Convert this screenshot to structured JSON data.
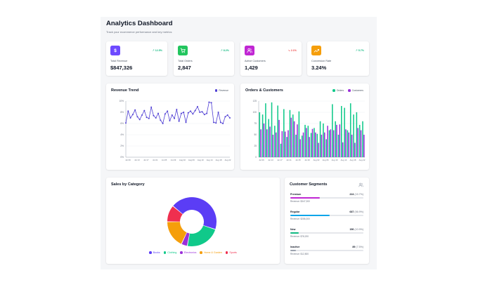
{
  "header": {
    "title": "Analytics Dashboard",
    "subtitle": "Track your ecommerce performance and key metrics"
  },
  "kpis": [
    {
      "label": "Total Revenue",
      "value": "$847,326",
      "change": "12.5%",
      "direction": "up",
      "icon": "dollar-icon",
      "color": "#6d4aff",
      "change_color": "#10b981"
    },
    {
      "label": "Total Orders",
      "value": "2,847",
      "change": "8.2%",
      "direction": "up",
      "icon": "cart-icon",
      "color": "#22c55e",
      "change_color": "#10b981"
    },
    {
      "label": "Active Customers",
      "value": "1,429",
      "change": "2.1%",
      "direction": "down",
      "icon": "users-icon",
      "color": "#c026d3",
      "change_color": "#ef4444"
    },
    {
      "label": "Conversion Rate",
      "value": "3.24%",
      "change": "5.7%",
      "direction": "up",
      "icon": "chart-icon",
      "color": "#f59e0b",
      "change_color": "#10b981"
    }
  ],
  "revenue_trend": {
    "title": "Revenue Trend",
    "legend": "Revenue",
    "color": "#4f3fd4"
  },
  "orders_customers": {
    "title": "Orders & Customers",
    "legend_orders": "Orders",
    "legend_customers": "Customers",
    "color_orders": "#10c98a",
    "color_customers": "#9b30d9"
  },
  "sales_by_category": {
    "title": "Sales by Category",
    "items": [
      {
        "name": "Books",
        "color": "#5b3df5"
      },
      {
        "name": "Clothing",
        "color": "#10c98a"
      },
      {
        "name": "Electronics",
        "color": "#9b30d9"
      },
      {
        "name": "Home & Garden",
        "color": "#f59e0b"
      },
      {
        "name": "Sports",
        "color": "#ef2f4f"
      }
    ]
  },
  "customer_segments": {
    "title": "Customer Segments",
    "segments": [
      {
        "name": "Premium",
        "count": "224",
        "pct": "(15.7%)",
        "fill": 0.4,
        "color": "#c026d3",
        "revenue": "Revenue: $347,300"
      },
      {
        "name": "Regular",
        "count": "687",
        "pct": "(56.9%)",
        "fill": 0.54,
        "color": "#0ea5e9",
        "revenue": "Revenue: $286,300"
      },
      {
        "name": "New",
        "count": "156",
        "pct": "(10.9%)",
        "fill": 0.12,
        "color": "#10b981",
        "revenue": "Revenue: $78,200"
      },
      {
        "name": "Inactive",
        "count": "89",
        "pct": "(7.5%)",
        "fill": 0.08,
        "color": "#9ca3af",
        "revenue": "Revenue: $12,800"
      }
    ]
  },
  "chart_data": [
    {
      "type": "line",
      "title": "Revenue Trend",
      "ylabel": "",
      "yticks": [
        "0%",
        "2%",
        "4%",
        "6%",
        "8%",
        "10%"
      ],
      "xticks": [
        "Jul 09",
        "Jul 13",
        "Jul 17",
        "Jul 21",
        "Jul 25",
        "Jul 29",
        "Aug 02",
        "Aug 06",
        "Aug 10",
        "Aug 14",
        "Aug 18",
        "Aug 22"
      ],
      "ylim": [
        0,
        10
      ],
      "series": [
        {
          "name": "Revenue",
          "values": [
            6.1,
            8.2,
            7.0,
            7.6,
            8.4,
            7.2,
            6.7,
            7.5,
            8.3,
            7.1,
            6.9,
            8.9,
            7.4,
            7.0,
            7.8,
            6.6,
            6.0,
            7.7,
            8.2,
            6.5,
            7.5,
            6.9,
            8.5,
            6.4,
            7.8,
            8.0,
            6.2,
            7.9,
            8.2,
            7.7,
            8.3,
            9.0,
            8.0,
            8.1,
            7.6,
            7.8,
            9.8,
            9.7,
            6.2,
            6.1,
            8.0,
            6.2,
            6.0,
            7.2,
            7.5,
            7.0
          ]
        }
      ]
    },
    {
      "type": "bar",
      "title": "Orders & Customers",
      "yticks": [
        "0",
        "25",
        "50",
        "75",
        "100",
        "125"
      ],
      "xticks": [
        "Jul 09",
        "Jul 13",
        "Jul 17",
        "Jul 21",
        "Jul 25",
        "Jul 29",
        "Aug 02",
        "Aug 06",
        "Aug 10",
        "Aug 14",
        "Aug 18",
        "Aug 22"
      ],
      "ylim": [
        0,
        125
      ],
      "series": [
        {
          "name": "Orders",
          "values": [
            100,
            95,
            120,
            85,
            122,
            70,
            115,
            30,
            107,
            45,
            105,
            95,
            50,
            102,
            48,
            72,
            70,
            54,
            65,
            52,
            80,
            75,
            40,
            60,
            118,
            80,
            50,
            114,
            110,
            60,
            120,
            95,
            100,
            72,
            80
          ]
        },
        {
          "name": "Customers",
          "values": [
            62,
            75,
            62,
            68,
            50,
            55,
            83,
            58,
            57,
            60,
            88,
            80,
            73,
            40,
            55,
            65,
            45,
            63,
            55,
            32,
            50,
            55,
            70,
            62,
            60,
            72,
            73,
            33,
            62,
            55,
            50,
            32,
            65,
            60,
            50
          ]
        }
      ]
    },
    {
      "type": "pie",
      "title": "Sales by Category",
      "categories": [
        "Books",
        "Clothing",
        "Electronics",
        "Home & Garden",
        "Sports"
      ],
      "values": [
        44,
        23,
        4,
        18,
        11
      ]
    }
  ]
}
